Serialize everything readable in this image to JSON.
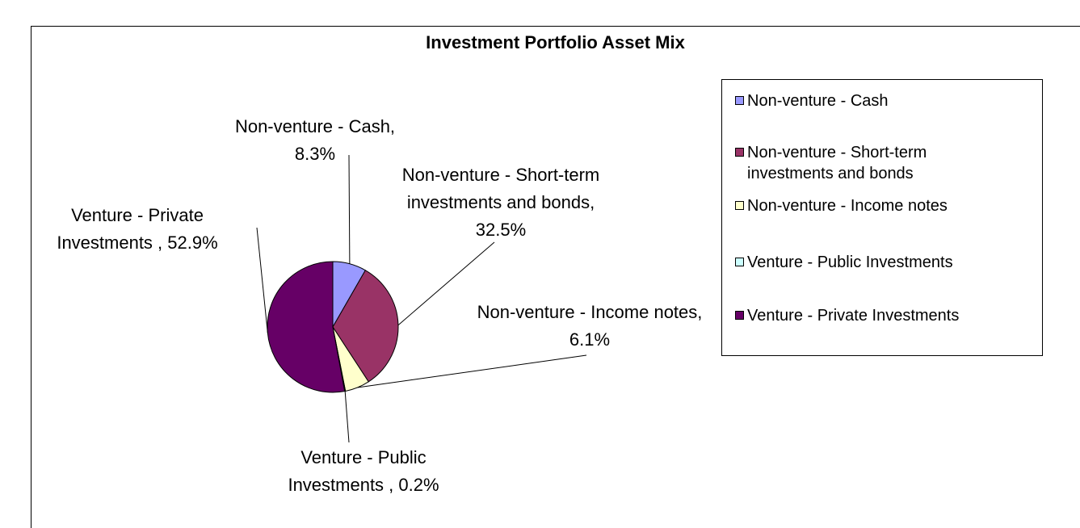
{
  "chart_data": {
    "type": "pie",
    "title": "Investment Portfolio Asset Mix",
    "categories": [
      "Non-venture - Cash",
      "Non-venture - Short-term investments and bonds",
      "Non-venture - Income notes",
      "Venture - Public Investments",
      "Venture - Private Investments"
    ],
    "values": [
      8.3,
      32.5,
      6.1,
      0.2,
      52.9
    ],
    "value_labels": [
      "Non-venture - Cash, 8.3%",
      "Non-venture - Short-term investments and bonds, 32.5%",
      "Non-venture - Income notes, 6.1%",
      "Venture - Public Investments , 0.2%",
      "Venture - Private Investments , 52.9%"
    ],
    "colors": [
      "#9999ff",
      "#993366",
      "#ffffcc",
      "#ccffff",
      "#660066"
    ],
    "legend": "right"
  }
}
